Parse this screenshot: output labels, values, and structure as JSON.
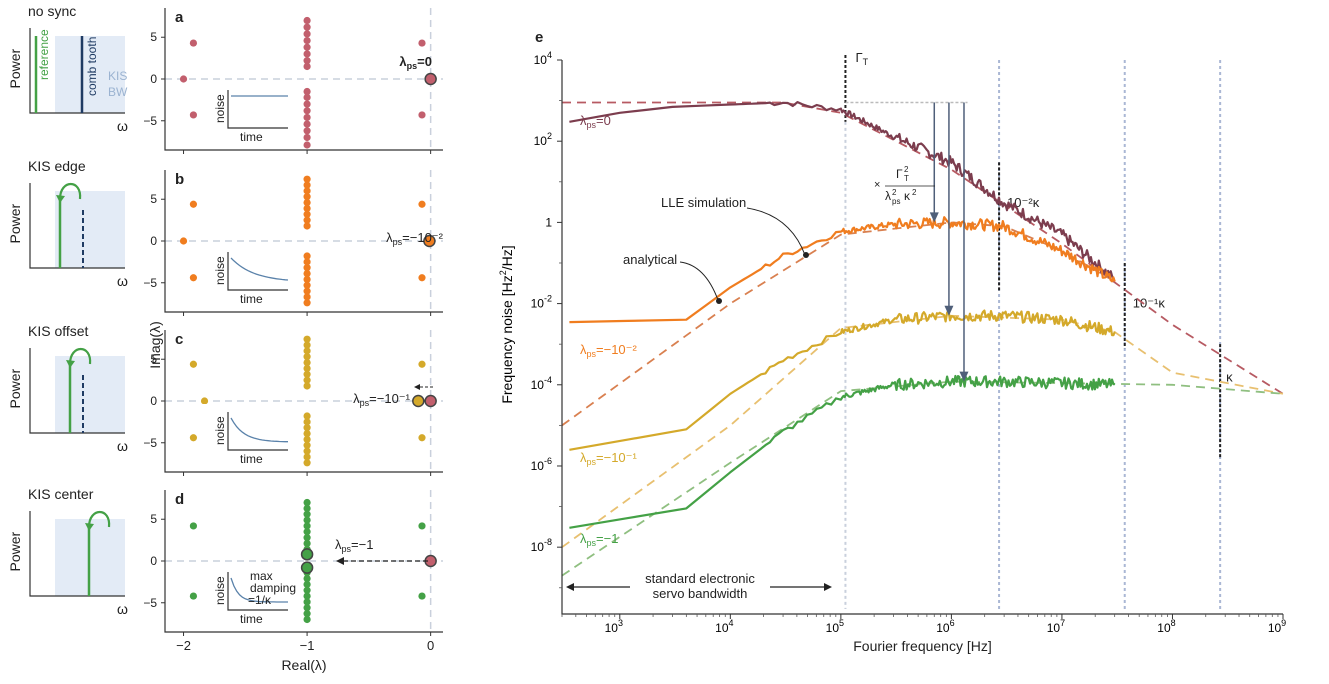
{
  "colors": {
    "no_sync": "#c25f6d",
    "maroon": "#7c3d4e",
    "orange": "#f07d1f",
    "yellow": "#d4a92a",
    "green": "#44a146",
    "band": "#e3ebf6",
    "band_text": "#9bb3d1",
    "comb": "#1f3b63",
    "noise_line": "#5a82aa",
    "arrow": "#4f5f79",
    "axis": "#333333",
    "vline_light": "#c9d0dc",
    "vline_blue": "#aab7d4",
    "vline_dark": "#222222",
    "grey_dash": "#bbbbbb",
    "maroon_analytic": "#b75a62",
    "orange_analytic": "#d98050",
    "yellow_analytic": "#e8c070",
    "green_analytic": "#8fbf80"
  },
  "cartoons": [
    {
      "title": "no sync",
      "ylabel": "Power",
      "xlabel": "ω",
      "reference_label": "reference",
      "comb_label": "comb tooth",
      "kis_label": "KIS",
      "bw_label": "BW"
    },
    {
      "title": "KIS edge",
      "ylabel": "Power",
      "xlabel": "ω"
    },
    {
      "title": "KIS offset",
      "ylabel": "Power",
      "xlabel": "ω"
    },
    {
      "title": "KIS center",
      "ylabel": "Power",
      "xlabel": "ω"
    }
  ],
  "panels_left": {
    "ylabel": "Imag(λ)",
    "xlabel": "Real(λ)",
    "x_ticks": [
      "−2",
      "−1",
      "0"
    ],
    "y_ticks": [
      "5",
      "0",
      "−5"
    ],
    "inset_ylabel": "noise",
    "inset_xlabel": "time",
    "d_inset_note": [
      "max",
      "damping",
      "=1/κ"
    ]
  },
  "chart_data": [
    {
      "type": "scatter",
      "panel": "a",
      "label_main": "λ",
      "label_sub": "ps",
      "label_value": "=0",
      "xlim": [
        -2.15,
        0.1
      ],
      "ylim": [
        -8.5,
        8.5
      ],
      "points": [
        {
          "x": -1.92,
          "y": 4.3
        },
        {
          "x": -1.92,
          "y": -4.3
        },
        {
          "x": -2.0,
          "y": 0
        },
        {
          "x": -0.07,
          "y": 4.3
        },
        {
          "x": -0.07,
          "y": -4.3
        },
        {
          "x": -1.0,
          "y": [
            -7.9,
            -7.0,
            -6.2,
            -5.4,
            -4.6,
            -3.8,
            -3.0,
            -2.2,
            -1.5,
            1.5,
            2.2,
            3.0,
            3.8,
            4.6,
            5.4,
            6.2,
            7.0
          ]
        }
      ],
      "highlight": [
        {
          "x": 0,
          "y": 0
        }
      ]
    },
    {
      "type": "scatter",
      "panel": "b",
      "label_main": "λ",
      "label_sub": "ps",
      "label_value": "=−10⁻²",
      "xlim": [
        -2.15,
        0.1
      ],
      "ylim": [
        -8.5,
        8.5
      ],
      "points": [
        {
          "x": -1.92,
          "y": 4.4
        },
        {
          "x": -1.92,
          "y": -4.4
        },
        {
          "x": -2.0,
          "y": 0
        },
        {
          "x": -0.07,
          "y": 4.4
        },
        {
          "x": -0.07,
          "y": -4.4
        },
        {
          "x": -1.0,
          "y": [
            -7.4,
            -6.7,
            -6.0,
            -5.3,
            -4.6,
            -3.9,
            -3.2,
            -2.5,
            -1.8,
            1.8,
            2.5,
            3.2,
            3.9,
            4.6,
            5.3,
            6.0,
            6.7,
            7.4
          ]
        }
      ],
      "highlight": [
        {
          "x": -0.01,
          "y": 0
        }
      ]
    },
    {
      "type": "scatter",
      "panel": "c",
      "label_main": "λ",
      "label_sub": "ps",
      "label_value": "=−10⁻¹",
      "xlim": [
        -2.15,
        0.1
      ],
      "ylim": [
        -8.5,
        8.5
      ],
      "points": [
        {
          "x": -1.92,
          "y": 4.4
        },
        {
          "x": -1.92,
          "y": -4.4
        },
        {
          "x": -1.83,
          "y": 0
        },
        {
          "x": -0.07,
          "y": 4.4
        },
        {
          "x": -0.07,
          "y": -4.4
        },
        {
          "x": -1.0,
          "y": [
            -7.4,
            -6.7,
            -6.0,
            -5.3,
            -4.6,
            -3.9,
            -3.2,
            -2.5,
            -1.8,
            1.8,
            2.5,
            3.2,
            3.9,
            4.6,
            5.3,
            6.0,
            6.7,
            7.4
          ]
        }
      ],
      "highlight": [
        {
          "x": -0.1,
          "y": 0,
          "color": "yellow"
        },
        {
          "x": 0,
          "y": 0,
          "color": "no_sync"
        }
      ]
    },
    {
      "type": "scatter",
      "panel": "d",
      "label_main": "λ",
      "label_sub": "ps",
      "label_value": "=−1",
      "xlim": [
        -2.15,
        0.1
      ],
      "ylim": [
        -8.5,
        8.5
      ],
      "points": [
        {
          "x": -1.92,
          "y": 4.2
        },
        {
          "x": -1.92,
          "y": -4.2
        },
        {
          "x": -0.07,
          "y": 4.2
        },
        {
          "x": -0.07,
          "y": -4.2
        },
        {
          "x": -1.0,
          "y": [
            -7.0,
            -6.3,
            -5.6,
            -4.9,
            -4.2,
            -3.5,
            -2.8,
            -2.1,
            -1.4,
            1.4,
            2.1,
            2.8,
            3.5,
            4.2,
            4.9,
            5.6,
            6.3,
            7.0
          ]
        }
      ],
      "highlight": [
        {
          "x": -1.0,
          "y": 0.8,
          "color": "green"
        },
        {
          "x": -1.0,
          "y": -0.8,
          "color": "green"
        },
        {
          "x": 0,
          "y": 0,
          "color": "no_sync"
        }
      ]
    },
    {
      "type": "line",
      "panel": "e",
      "xscale": "log",
      "yscale": "log",
      "xlim": [
        300,
        1000000000
      ],
      "ylim": [
        3e-10,
        10000
      ],
      "xlabel": "Fourier frequency [Hz]",
      "ylabel_main": "Frequency noise [Hz",
      "ylabel_sup": "2",
      "ylabel_end": "/Hz]",
      "x_ticks": [
        {
          "value": 1000,
          "base": "10",
          "exp": "3"
        },
        {
          "value": 10000,
          "base": "10",
          "exp": "4"
        },
        {
          "value": 100000,
          "base": "10",
          "exp": "5"
        },
        {
          "value": 1000000,
          "base": "10",
          "exp": "6"
        },
        {
          "value": 10000000,
          "base": "10",
          "exp": "7"
        },
        {
          "value": 100000000,
          "base": "10",
          "exp": "8"
        },
        {
          "value": 1000000000,
          "base": "10",
          "exp": "9"
        }
      ],
      "y_ticks": [
        {
          "value": 10000,
          "base": "10",
          "exp": "4"
        },
        {
          "value": 100,
          "base": "10",
          "exp": "2"
        },
        {
          "value": 1,
          "base": "1",
          "exp": ""
        },
        {
          "value": 0.01,
          "base": "10",
          "exp": "-2"
        },
        {
          "value": 0.0001,
          "base": "10",
          "exp": "-4"
        },
        {
          "value": 1e-06,
          "base": "10",
          "exp": "-6"
        },
        {
          "value": 1e-08,
          "base": "10",
          "exp": "-8"
        }
      ],
      "series": [
        {
          "name_main": "λ",
          "name_sub": "ps",
          "name_value": "=0",
          "color": "maroon",
          "x": [
            350,
            1000,
            3000,
            10000,
            30000,
            100000,
            300000,
            1000000,
            3000000,
            10000000,
            30000000
          ],
          "y": [
            300,
            500,
            700,
            800,
            900,
            600,
            130,
            30,
            3,
            0.5,
            0.04
          ]
        },
        {
          "name_main": "λ",
          "name_sub": "ps",
          "name_value": "=−10⁻²",
          "color": "orange",
          "x": [
            350,
            4000,
            10000,
            30000,
            100000,
            300000,
            1000000,
            3000000,
            10000000,
            30000000
          ],
          "y": [
            0.0035,
            0.004,
            0.025,
            0.15,
            0.6,
            0.9,
            1.0,
            0.8,
            0.2,
            0.035
          ]
        },
        {
          "name_main": "λ",
          "name_sub": "ps",
          "name_value": "=−10⁻¹",
          "color": "yellow",
          "x": [
            350,
            4000,
            10000,
            30000,
            100000,
            300000,
            1000000,
            3000000,
            10000000,
            30000000
          ],
          "y": 2.5e-06,
          "y_values": [
            2.5e-06,
            8e-06,
            6e-05,
            0.0004,
            0.002,
            0.004,
            0.005,
            0.005,
            0.004,
            0.002
          ]
        },
        {
          "name_main": "λ",
          "name_sub": "ps",
          "name_value": "=−1",
          "color": "green",
          "x": [
            350,
            4000,
            10000,
            30000,
            100000,
            300000,
            1000000,
            3000000,
            10000000,
            30000000
          ],
          "y": 3e-08,
          "y_values": [
            3e-08,
            9e-08,
            7e-07,
            7e-06,
            5e-05,
            0.0001,
            0.00012,
            0.00012,
            0.00011,
            0.0001
          ]
        }
      ],
      "analytical": [
        {
          "color": "maroon_analytic",
          "x": [
            300,
            30000,
            100000,
            1000000,
            10000000,
            100000000,
            1000000000
          ],
          "y": [
            900,
            900,
            500,
            20,
            0.3,
            0.003,
            6e-05
          ]
        },
        {
          "color": "orange_analytic",
          "x": [
            300,
            10000,
            100000,
            1000000,
            3000000,
            10000000,
            30000000
          ],
          "y": [
            1e-05,
            0.01,
            0.5,
            1.0,
            0.8,
            0.2,
            0.035
          ]
        },
        {
          "color": "yellow_analytic",
          "x": [
            300,
            10000,
            100000,
            1000000,
            10000000,
            30000000,
            100000000,
            1000000000
          ],
          "y": [
            1e-08,
            1e-05,
            0.0025,
            0.005,
            0.004,
            0.002,
            0.0002,
            6e-05
          ]
        },
        {
          "color": "green_analytic",
          "x": [
            300,
            10000,
            100000,
            1000000,
            10000000,
            100000000,
            1000000000
          ],
          "y": [
            2e-09,
            1.2e-06,
            7e-05,
            0.00012,
            0.00011,
            0.0001,
            6e-05
          ]
        }
      ],
      "vlines": [
        {
          "x": 110000,
          "label_main": "Γ",
          "label_sub": "T",
          "style": "dark",
          "top": 20000
        },
        {
          "x": 110000,
          "style": "light_bottom"
        },
        {
          "x": 2700000,
          "label": "10⁻²κ",
          "style": "blue_dark"
        },
        {
          "x": 37000000,
          "label": "10⁻¹κ",
          "style": "blue_dark"
        },
        {
          "x": 270000000,
          "label": "κ",
          "style": "blue_dark"
        }
      ],
      "arrows": [
        {
          "x": 700000,
          "from": 900,
          "to": 1.0
        },
        {
          "x": 950000,
          "from": 900,
          "to": 0.005
        },
        {
          "x": 1300000,
          "from": 900,
          "to": 0.00012
        }
      ],
      "annotations": {
        "lle": "LLE simulation",
        "analytical": "analytical",
        "factor_prefix": "×",
        "bandwidth_1": "standard electronic",
        "bandwidth_2": "servo bandwidth"
      }
    }
  ]
}
